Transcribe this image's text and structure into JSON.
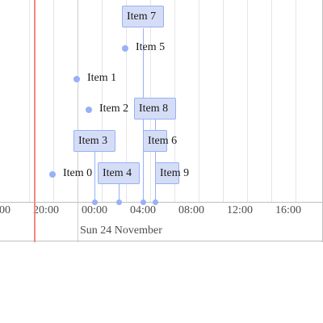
{
  "timeline": {
    "axis_ticks": [
      "00",
      "20:00",
      "00:00",
      "04:00",
      "08:00",
      "12:00",
      "16:00"
    ],
    "date_label": "Sun 24 November",
    "point_items": [
      {
        "label": "Item 5"
      },
      {
        "label": "Item 1"
      },
      {
        "label": "Item 2"
      },
      {
        "label": "Item 0"
      }
    ],
    "box_items": [
      {
        "label": "Item 7"
      },
      {
        "label": "Item 8"
      },
      {
        "label": "Item 3"
      },
      {
        "label": "Item 6"
      },
      {
        "label": "Item 4"
      },
      {
        "label": "Item 9"
      }
    ],
    "colors": {
      "item_fill": "#d5ddf6",
      "item_border": "#97b0f8",
      "current_time": "#f38a7c"
    }
  }
}
